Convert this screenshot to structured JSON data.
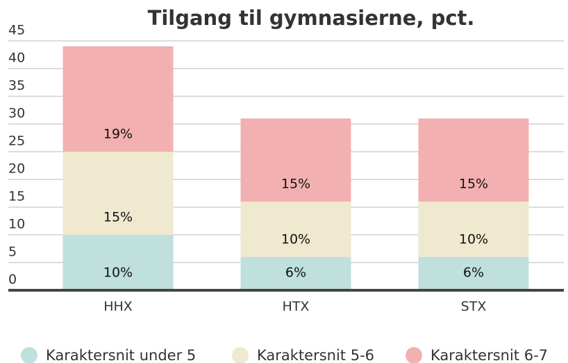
{
  "chart_data": {
    "type": "stacked_bar",
    "title": "Tilgang til gymnasierne, pct.",
    "categories": [
      "HHX",
      "HTX",
      "STX"
    ],
    "series": [
      {
        "name": "Karaktersnit under 5",
        "color": "#bfe0dd",
        "values": [
          10,
          6,
          6
        ],
        "value_labels": [
          "10%",
          "6%",
          "6%"
        ]
      },
      {
        "name": "Karaktersnit 5-6",
        "color": "#efe9d0",
        "values": [
          15,
          10,
          10
        ],
        "value_labels": [
          "15%",
          "10%",
          "10%"
        ]
      },
      {
        "name": "Karaktersnit 6-7",
        "color": "#f2b1b0",
        "values": [
          19,
          15,
          15
        ],
        "value_labels": [
          "19%",
          "15%",
          "15%"
        ]
      }
    ],
    "ylim": [
      0,
      45
    ],
    "yticks": [
      0,
      5,
      10,
      15,
      20,
      25,
      30,
      35,
      40,
      45
    ],
    "grid": true,
    "legend": "bottom"
  }
}
